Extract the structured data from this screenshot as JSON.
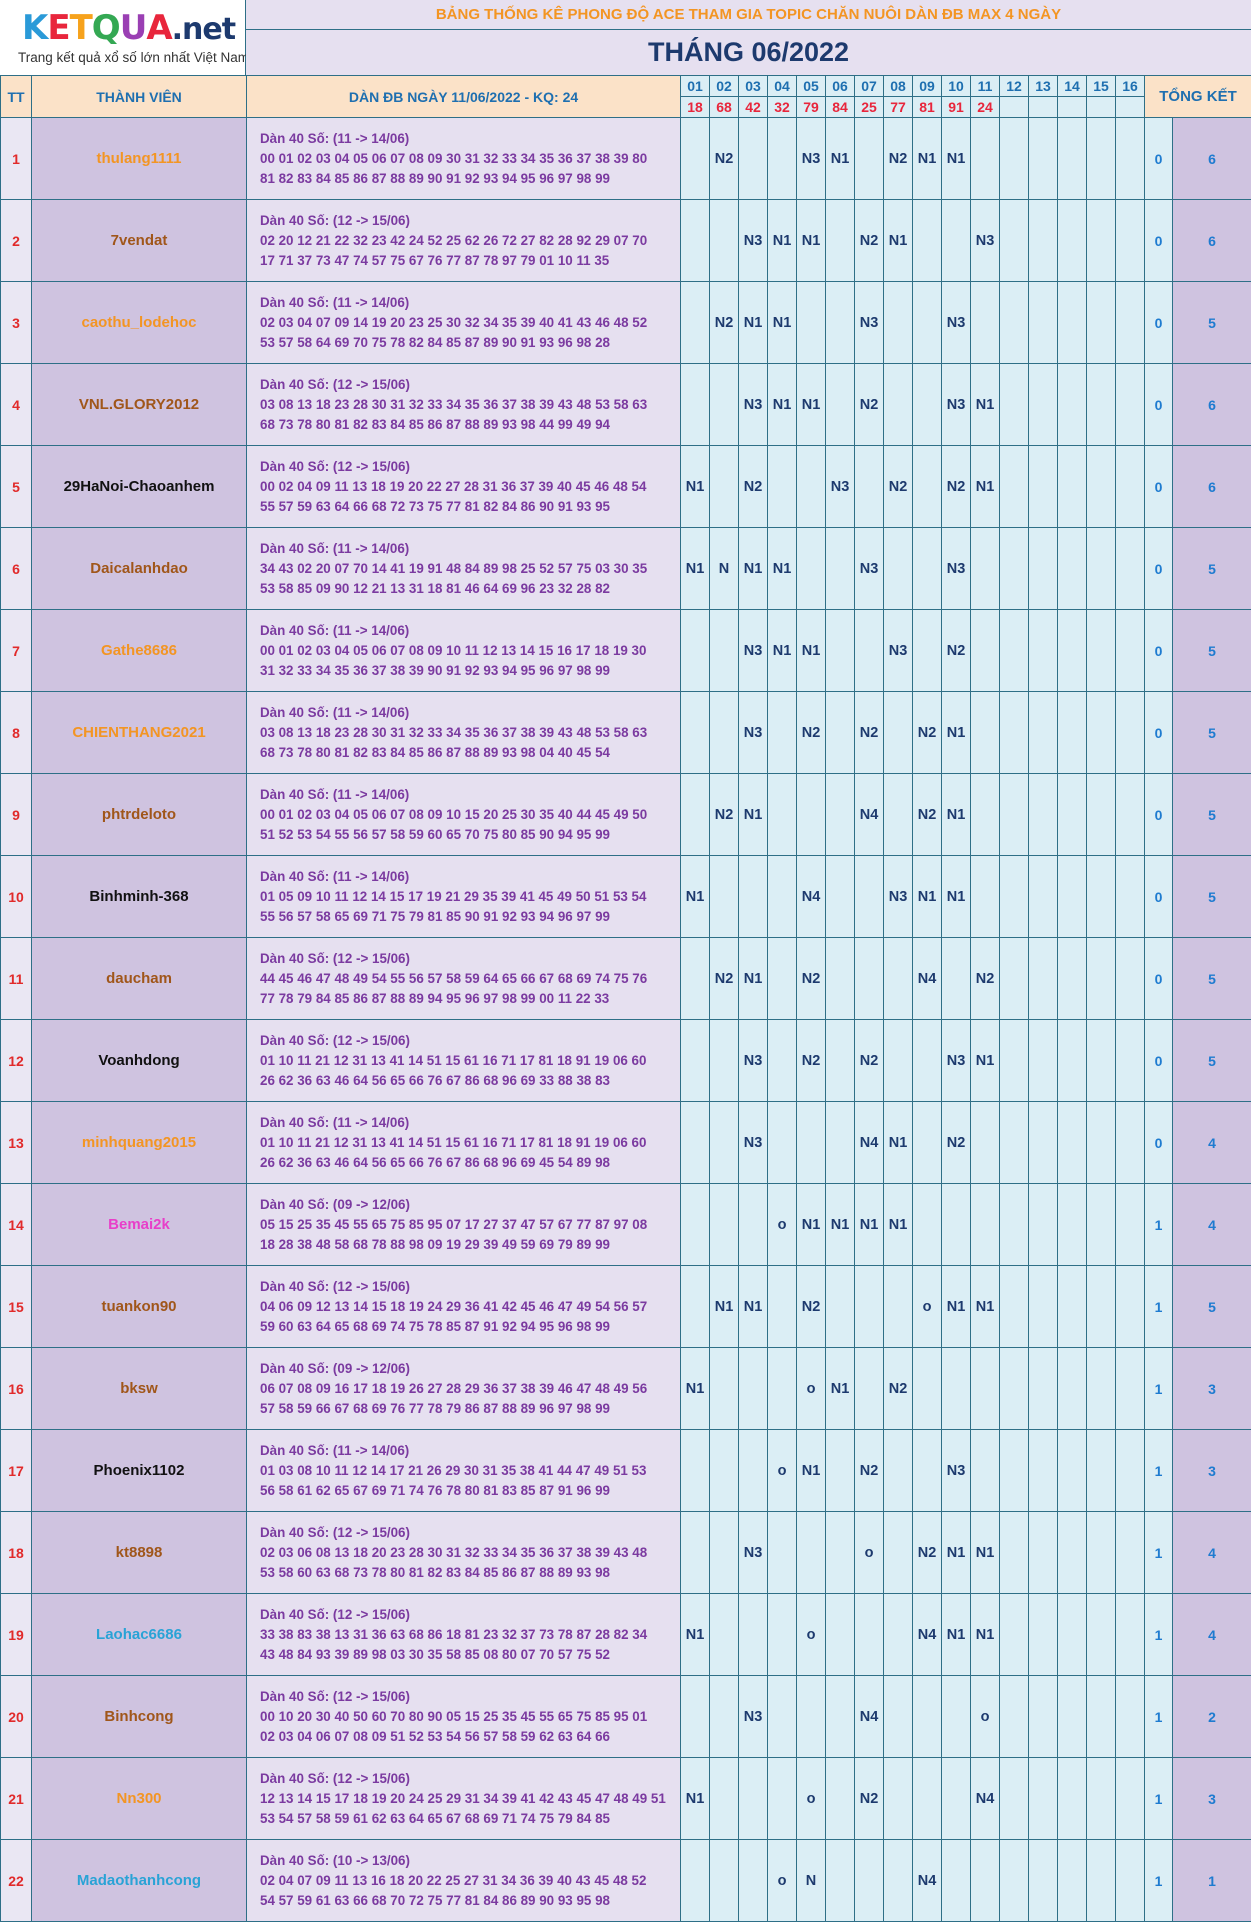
{
  "logo": {
    "brand_letters": [
      "K",
      "E",
      "T",
      "Q",
      "U",
      "A"
    ],
    "brand_colors": [
      "#2a9ad8",
      "#e8263c",
      "#f6a21c",
      "#34a853",
      "#9a3fb3",
      "#e8263c"
    ],
    "brand_suffix": ".net",
    "tagline": "Trang kết quả xổ số lớn nhất Việt Nam"
  },
  "header": {
    "title": "BẢNG THỐNG KÊ PHONG ĐỘ ACE THAM GIA TOPIC CHĂN NUÔI DÀN ĐB MAX 4 NGÀY",
    "month": "THÁNG 06/2022",
    "col_tt": "TT",
    "col_member": "THÀNH VIÊN",
    "col_dan": "DÀN ĐB NGÀY 11/06/2022 - KQ: 24",
    "col_summary": "TỔNG KẾT"
  },
  "days": [
    "01",
    "02",
    "03",
    "04",
    "05",
    "06",
    "07",
    "08",
    "09",
    "10",
    "11",
    "12",
    "13",
    "14",
    "15",
    "16"
  ],
  "results": [
    "18",
    "68",
    "42",
    "32",
    "79",
    "84",
    "25",
    "77",
    "81",
    "91",
    "24",
    "",
    "",
    "",
    "",
    ""
  ],
  "colors": {
    "orange": "#f39523",
    "brown": "#a0561a",
    "black": "#111111",
    "pink": "#e83ec9",
    "blue": "#29a3d6"
  },
  "rows": [
    {
      "tt": "1",
      "name": "thulang1111",
      "color": "orange",
      "d1": "Dàn 40 Số: (11 -> 14/06)",
      "d2": "00 01 02 03 04 05 06 07 08 09 30 31 32 33 34 35 36 37 38 39 80",
      "d3": "81 82 83 84 85 86 87 88 89 90 91 92 93 94 95 96 97 98 99",
      "marks": [
        "",
        "N2",
        "",
        "",
        "N3",
        "N1",
        "",
        "N2",
        "N1",
        "N1",
        "",
        "",
        "",
        "",
        "",
        ""
      ],
      "s1": "0",
      "s2": "6"
    },
    {
      "tt": "2",
      "name": "7vendat",
      "color": "brown",
      "d1": "Dàn 40 Số: (12 -> 15/06)",
      "d2": "02 20 12 21 22 32 23 42 24 52 25 62 26 72 27 82 28 92 29 07 70",
      "d3": "17 71 37 73 47 74 57 75 67 76 77 87 78 97 79 01 10 11 35",
      "marks": [
        "",
        "",
        "N3",
        "N1",
        "N1",
        "",
        "N2",
        "N1",
        "",
        "",
        "N3",
        "",
        "",
        "",
        "",
        ""
      ],
      "s1": "0",
      "s2": "6"
    },
    {
      "tt": "3",
      "name": "caothu_lodehoc",
      "color": "orange",
      "d1": "Dàn 40 Số: (11 -> 14/06)",
      "d2": "02 03 04 07 09 14 19 20 23 25 30 32 34 35 39 40 41 43 46 48 52",
      "d3": "53 57 58 64 69 70 75 78 82 84 85 87 89 90 91 93 96 98 28",
      "marks": [
        "",
        "N2",
        "N1",
        "N1",
        "",
        "",
        "N3",
        "",
        "",
        "N3",
        "",
        "",
        "",
        "",
        "",
        ""
      ],
      "s1": "0",
      "s2": "5"
    },
    {
      "tt": "4",
      "name": "VNL.GLORY2012",
      "color": "brown",
      "d1": "Dàn 40 Số: (12 -> 15/06)",
      "d2": "03 08 13 18 23 28 30 31 32 33 34 35 36 37 38 39 43 48 53 58 63",
      "d3": "68 73 78 80 81 82 83 84 85 86 87 88 89 93 98 44 99 49 94",
      "marks": [
        "",
        "",
        "N3",
        "N1",
        "N1",
        "",
        "N2",
        "",
        "",
        "N3",
        "N1",
        "",
        "",
        "",
        "",
        ""
      ],
      "s1": "0",
      "s2": "6"
    },
    {
      "tt": "5",
      "name": "29HaNoi-Chaoanhem",
      "color": "black",
      "d1": "Dàn 40 Số: (12 -> 15/06)",
      "d2": "00 02 04 09 11 13 18 19 20 22 27 28 31 36 37 39 40 45 46 48 54",
      "d3": "55 57 59 63 64 66 68 72 73 75 77 81 82 84 86 90 91 93 95",
      "marks": [
        "N1",
        "",
        "N2",
        "",
        "",
        "N3",
        "",
        "N2",
        "",
        "N2",
        "N1",
        "",
        "",
        "",
        "",
        ""
      ],
      "s1": "0",
      "s2": "6"
    },
    {
      "tt": "6",
      "name": "Daicalanhdao",
      "color": "brown",
      "d1": "Dàn 40 Số: (11 -> 14/06)",
      "d2": "34 43 02 20 07 70 14 41 19 91 48 84 89 98 25 52 57 75 03 30 35",
      "d3": "53 58 85 09 90 12 21 13 31 18 81 46 64 69 96 23 32 28 82",
      "marks": [
        "N1",
        "N",
        "N1",
        "N1",
        "",
        "",
        "N3",
        "",
        "",
        "N3",
        "",
        "",
        "",
        "",
        "",
        ""
      ],
      "s1": "0",
      "s2": "5"
    },
    {
      "tt": "7",
      "name": "Gathe8686",
      "color": "orange",
      "d1": "Dàn 40 Số: (11 -> 14/06)",
      "d2": "00 01 02 03 04 05 06 07 08 09 10 11 12 13 14 15 16 17 18 19 30",
      "d3": "31 32 33 34 35 36 37 38 39 90 91 92 93 94 95 96 97 98 99",
      "marks": [
        "",
        "",
        "N3",
        "N1",
        "N1",
        "",
        "",
        "N3",
        "",
        "N2",
        "",
        "",
        "",
        "",
        "",
        ""
      ],
      "s1": "0",
      "s2": "5"
    },
    {
      "tt": "8",
      "name": "CHIENTHANG2021",
      "color": "orange",
      "d1": "Dàn 40 Số: (11 -> 14/06)",
      "d2": "03 08 13 18 23 28 30 31 32 33 34 35 36 37 38 39 43 48 53 58 63",
      "d3": "68 73 78 80 81 82 83 84 85 86 87 88 89 93 98 04 40 45 54",
      "marks": [
        "",
        "",
        "N3",
        "",
        "N2",
        "",
        "N2",
        "",
        "N2",
        "N1",
        "",
        "",
        "",
        "",
        "",
        ""
      ],
      "s1": "0",
      "s2": "5"
    },
    {
      "tt": "9",
      "name": "phtrdeloto",
      "color": "brown",
      "d1": "Dàn 40 Số: (11 -> 14/06)",
      "d2": "00 01 02 03 04 05 06 07 08 09 10 15 20 25 30 35 40 44 45 49 50",
      "d3": "51 52 53 54 55 56 57 58 59 60 65 70 75 80 85 90 94 95 99",
      "marks": [
        "",
        "N2",
        "N1",
        "",
        "",
        "",
        "N4",
        "",
        "N2",
        "N1",
        "",
        "",
        "",
        "",
        "",
        ""
      ],
      "s1": "0",
      "s2": "5"
    },
    {
      "tt": "10",
      "name": "Binhminh-368",
      "color": "black",
      "d1": "Dàn 40 Số: (11 -> 14/06)",
      "d2": "01 05 09 10 11 12 14 15 17 19 21 29 35 39 41 45 49 50 51 53 54",
      "d3": "55 56 57 58 65 69 71 75 79 81 85 90 91 92 93 94 96 97 99",
      "marks": [
        "N1",
        "",
        "",
        "",
        "N4",
        "",
        "",
        "N3",
        "N1",
        "N1",
        "",
        "",
        "",
        "",
        "",
        ""
      ],
      "s1": "0",
      "s2": "5"
    },
    {
      "tt": "11",
      "name": "daucham",
      "color": "brown",
      "d1": "Dàn 40 Số: (12 -> 15/06)",
      "d2": "44 45 46 47 48 49 54 55 56 57 58 59 64 65 66 67 68 69 74 75 76",
      "d3": "77 78 79 84 85 86 87 88 89 94 95 96 97 98 99 00 11 22 33",
      "marks": [
        "",
        "N2",
        "N1",
        "",
        "N2",
        "",
        "",
        "",
        "N4",
        "",
        "N2",
        "",
        "",
        "",
        "",
        ""
      ],
      "s1": "0",
      "s2": "5"
    },
    {
      "tt": "12",
      "name": "Voanhdong",
      "color": "black",
      "d1": "Dàn 40 Số: (12 -> 15/06)",
      "d2": "01 10 11 21 12 31 13 41 14 51 15 61 16 71 17 81 18 91 19 06 60",
      "d3": "26 62 36 63 46 64 56 65 66 76 67 86 68 96 69 33 88 38 83",
      "marks": [
        "",
        "",
        "N3",
        "",
        "N2",
        "",
        "N2",
        "",
        "",
        "N3",
        "N1",
        "",
        "",
        "",
        "",
        ""
      ],
      "s1": "0",
      "s2": "5"
    },
    {
      "tt": "13",
      "name": "minhquang2015",
      "color": "orange",
      "d1": "Dàn 40 Số: (11 -> 14/06)",
      "d2": "01 10 11 21 12 31 13 41 14 51 15 61 16 71 17 81 18 91 19 06 60",
      "d3": "26 62 36 63 46 64 56 65 66 76 67 86 68 96 69 45 54 89 98",
      "marks": [
        "",
        "",
        "N3",
        "",
        "",
        "",
        "N4",
        "N1",
        "",
        "N2",
        "",
        "",
        "",
        "",
        "",
        ""
      ],
      "s1": "0",
      "s2": "4"
    },
    {
      "tt": "14",
      "name": "Bemai2k",
      "color": "pink",
      "d1": "Dàn 40 Số: (09 -> 12/06)",
      "d2": "05 15 25 35 45 55 65 75 85 95 07 17 27 37 47 57 67 77 87 97 08",
      "d3": "18 28 38 48 58 68 78 88 98 09 19 29 39 49 59 69 79 89 99",
      "marks": [
        "",
        "",
        "",
        "o",
        "N1",
        "N1",
        "N1",
        "N1",
        "",
        "",
        "",
        "",
        "",
        "",
        "",
        ""
      ],
      "s1": "1",
      "s2": "4"
    },
    {
      "tt": "15",
      "name": "tuankon90",
      "color": "brown",
      "d1": "Dàn 40 Số: (12 -> 15/06)",
      "d2": "04 06 09 12 13 14 15 18 19 24 29 36 41 42 45 46 47 49 54 56 57",
      "d3": "59 60 63 64 65 68 69 74 75 78 85 87 91 92 94 95 96 98 99",
      "marks": [
        "",
        "N1",
        "N1",
        "",
        "N2",
        "",
        "",
        "",
        "o",
        "N1",
        "N1",
        "",
        "",
        "",
        "",
        ""
      ],
      "s1": "1",
      "s2": "5"
    },
    {
      "tt": "16",
      "name": "bksw",
      "color": "brown",
      "d1": "Dàn 40 Số: (09 -> 12/06)",
      "d2": "06 07 08 09 16 17 18 19 26 27 28 29 36 37 38 39 46 47 48 49 56",
      "d3": "57 58 59 66 67 68 69 76 77 78 79 86 87 88 89 96 97 98 99",
      "marks": [
        "N1",
        "",
        "",
        "",
        "o",
        "N1",
        "",
        "N2",
        "",
        "",
        "",
        "",
        "",
        "",
        "",
        ""
      ],
      "s1": "1",
      "s2": "3"
    },
    {
      "tt": "17",
      "name": "Phoenix1102",
      "color": "black",
      "d1": "Dàn 40 Số: (11 -> 14/06)",
      "d2": "01 03 08 10 11 12 14 17 21 26 29 30 31 35 38 41 44 47 49 51 53",
      "d3": "56 58 61 62 65 67 69 71 74 76 78 80 81 83 85 87 91 96 99",
      "marks": [
        "",
        "",
        "",
        "o",
        "N1",
        "",
        "N2",
        "",
        "",
        "N3",
        "",
        "",
        "",
        "",
        "",
        ""
      ],
      "s1": "1",
      "s2": "3"
    },
    {
      "tt": "18",
      "name": "kt8898",
      "color": "brown",
      "d1": "Dàn 40 Số: (12 -> 15/06)",
      "d2": "02 03 06 08 13 18 20 23 28 30 31 32 33 34 35 36 37 38 39 43 48",
      "d3": "53 58 60 63 68 73 78 80 81 82 83 84 85 86 87 88 89 93 98",
      "marks": [
        "",
        "",
        "N3",
        "",
        "",
        "",
        "o",
        "",
        "N2",
        "N1",
        "N1",
        "",
        "",
        "",
        "",
        ""
      ],
      "s1": "1",
      "s2": "4"
    },
    {
      "tt": "19",
      "name": "Laohac6686",
      "color": "blue",
      "d1": "Dàn 40 Số: (12 -> 15/06)",
      "d2": "33 38 83 38 13 31 36 63 68 86 18 81 23 32 37 73 78 87 28 82 34",
      "d3": "43 48 84 93 39 89 98 03 30 35 58 85 08 80 07 70 57 75 52",
      "marks": [
        "N1",
        "",
        "",
        "",
        "o",
        "",
        "",
        "",
        "N4",
        "N1",
        "N1",
        "",
        "",
        "",
        "",
        ""
      ],
      "s1": "1",
      "s2": "4"
    },
    {
      "tt": "20",
      "name": "Binhcong",
      "color": "brown",
      "d1": "Dàn 40 Số: (12 -> 15/06)",
      "d2": "00 10 20 30 40 50 60 70 80 90 05 15 25 35 45 55 65 75 85 95 01",
      "d3": "02 03 04 06 07 08 09 51 52 53 54 56 57 58 59 62 63 64 66",
      "marks": [
        "",
        "",
        "N3",
        "",
        "",
        "",
        "N4",
        "",
        "",
        "",
        "o",
        "",
        "",
        "",
        "",
        ""
      ],
      "s1": "1",
      "s2": "2"
    },
    {
      "tt": "21",
      "name": "Nn300",
      "color": "orange",
      "d1": "Dàn 40 Số: (12 -> 15/06)",
      "d2": "12 13 14 15 17 18 19 20 24 25 29 31 34 39 41 42 43 45 47 48 49 51",
      "d3": "53 54 57 58 59 61 62 63 64 65 67 68 69 71 74 75 79 84 85",
      "marks": [
        "N1",
        "",
        "",
        "",
        "o",
        "",
        "N2",
        "",
        "",
        "",
        "N4",
        "",
        "",
        "",
        "",
        ""
      ],
      "s1": "1",
      "s2": "3"
    },
    {
      "tt": "22",
      "name": "Madaothanhcong",
      "color": "blue",
      "d1": "Dàn 40 Số: (10 -> 13/06)",
      "d2": "02 04 07 09 11 13 16 18 20 22 25 27 31 34 36 39 40 43 45 48 52",
      "d3": "54 57 59 61 63 66 68 70 72 75 77 81 84 86 89 90 93 95 98",
      "marks": [
        "",
        "",
        "",
        "o",
        "N",
        "",
        "",
        "",
        "N4",
        "",
        "",
        "",
        "",
        "",
        "",
        ""
      ],
      "s1": "1",
      "s2": "1"
    }
  ]
}
